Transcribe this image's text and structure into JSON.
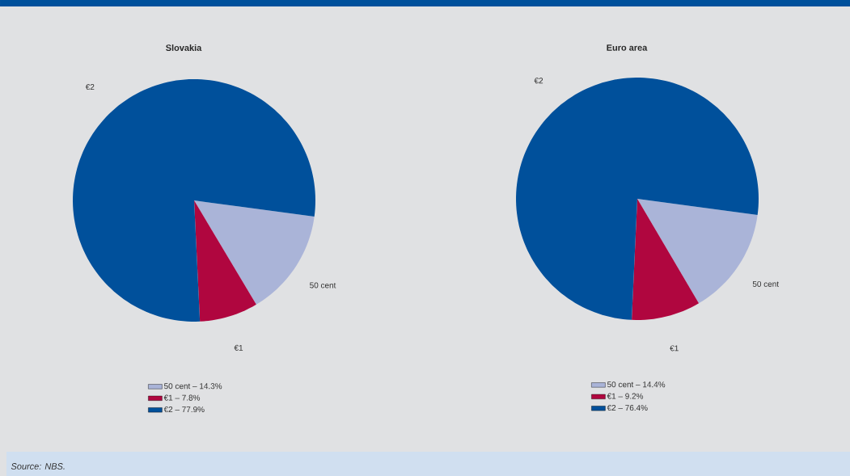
{
  "chart_data": [
    {
      "type": "pie",
      "title": "Slovakia",
      "categories": [
        "50 cent – 14.3%",
        "€1 – 7.8%",
        "€2 – 77.9%"
      ],
      "values": [
        14.3,
        7.8,
        77.9
      ],
      "colors": [
        "#aab4d8",
        "#b0063f",
        "#00509b"
      ],
      "legend": "bottom",
      "annotations": [
        {
          "text": "50 cent",
          "x": "50 cent – 14.3%"
        },
        {
          "text": "€1",
          "x": "€1 – 7.8%"
        },
        {
          "text": "€2",
          "x": "€2 – 77.9%"
        },
        "Source: NBS."
      ]
    },
    {
      "type": "pie",
      "title": "Euro area",
      "categories": [
        "50 cent – 14.4%",
        "€1 – 9.2%",
        "€2 – 76.4%"
      ],
      "values": [
        14.4,
        9.2,
        76.4
      ],
      "colors": [
        "#aab4d8",
        "#b0063f",
        "#00509b"
      ],
      "legend": "bottom",
      "annotations": [
        {
          "text": "50 cent",
          "x": "50 cent – 14.4%"
        },
        {
          "text": "€1",
          "x": "€1 – 9.2%"
        },
        {
          "text": "€2",
          "x": "€2 – 76.4%"
        }
      ]
    }
  ]
}
